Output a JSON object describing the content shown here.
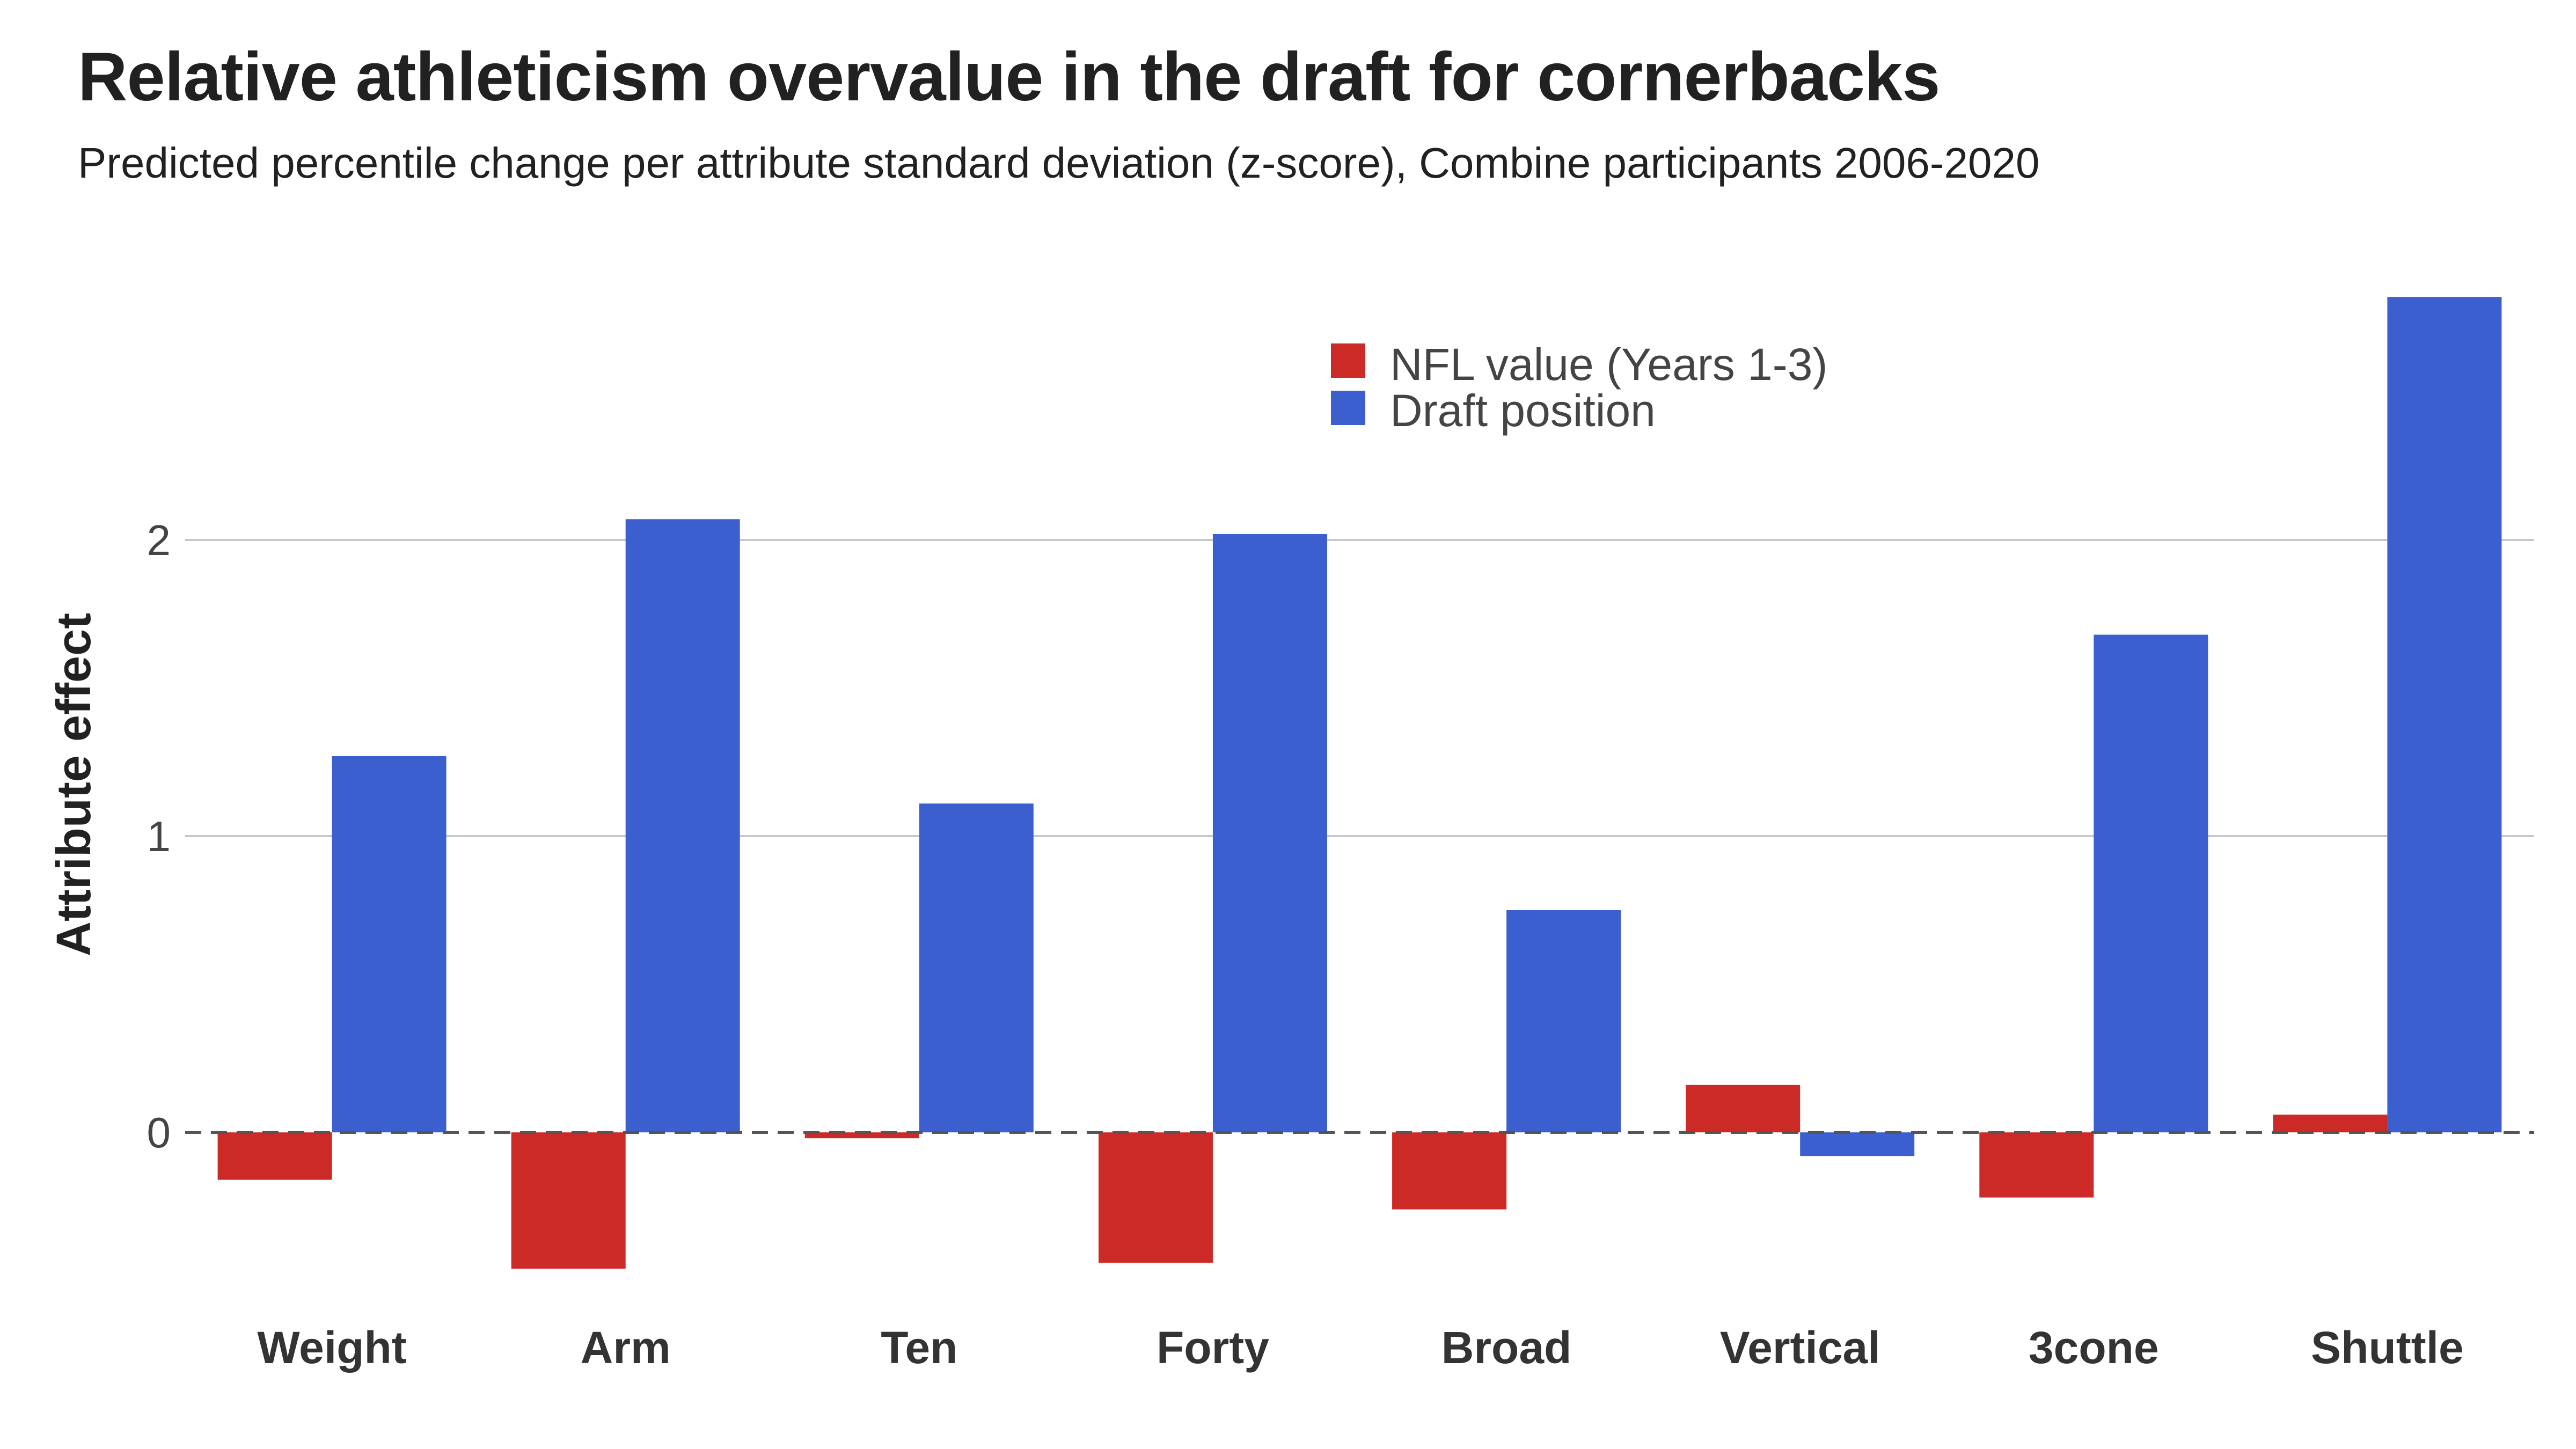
{
  "chart_data": {
    "type": "bar",
    "title": "Relative athleticism overvalue in the draft for cornerbacks",
    "subtitle": "Predicted percentile change per attribute standard deviation (z-score), Combine participants 2006-2020",
    "ylabel": "Attribute effect",
    "xlabel": "",
    "categories": [
      "Weight",
      "Arm",
      "Ten",
      "Forty",
      "Broad",
      "Vertical",
      "3cone",
      "Shuttle"
    ],
    "series": [
      {
        "name": "NFL value (Years 1-3)",
        "color": "#cc2a27",
        "values": [
          -0.16,
          -0.46,
          -0.02,
          -0.44,
          -0.26,
          0.16,
          -0.22,
          0.06
        ]
      },
      {
        "name": "Draft position",
        "color": "#3b5fce",
        "values": [
          1.27,
          2.07,
          1.11,
          2.02,
          0.75,
          -0.08,
          1.68,
          2.82
        ]
      }
    ],
    "ylim": [
      -0.6,
      3.0
    ],
    "yticks": [
      0,
      1,
      2
    ],
    "grid": true,
    "legend": "top-center"
  }
}
